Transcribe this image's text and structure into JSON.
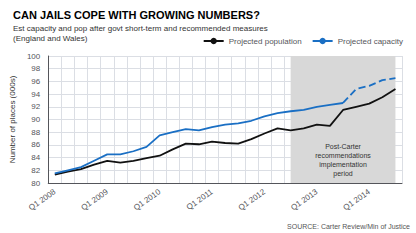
{
  "chart_data": {
    "type": "line",
    "title": "CAN JAILS COPE WITH GROWING NUMBERS?",
    "subtitle": [
      "Est capacity and pop after govt short-term and recommended measures",
      "(England and Wales)"
    ],
    "ylabel": "Number of places (000s)",
    "source": "SOURCE: Carter Review/Min of Justice",
    "annotation": {
      "text": "Post-Carter\nrecommendations\nimplementation\nperiod",
      "shaded_from_index": 18,
      "color": "#d8d8d8"
    },
    "categories": [
      "Q1 2008",
      null,
      null,
      null,
      "Q1 2009",
      null,
      null,
      null,
      "Q1 2010",
      null,
      null,
      null,
      "Q1 2011",
      null,
      null,
      null,
      "Q1 2012",
      null,
      null,
      null,
      "Q1 2013",
      null,
      null,
      null,
      "Q1 2014",
      null,
      null
    ],
    "series": [
      {
        "name": "Projected population",
        "color": "#111111",
        "line_style": "solid",
        "values": [
          81.3,
          81.8,
          82.2,
          82.9,
          83.5,
          83.2,
          83.5,
          83.9,
          84.3,
          85.3,
          86.2,
          86.1,
          86.5,
          86.3,
          86.2,
          86.9,
          87.8,
          88.6,
          88.3,
          88.6,
          89.2,
          89.0,
          91.5,
          92.0,
          92.5,
          93.5,
          94.8
        ]
      },
      {
        "name": "Projected capacity",
        "color": "#1a6fc4",
        "line_style": "solid",
        "values": [
          81.5,
          82.0,
          82.5,
          83.5,
          84.5,
          84.5,
          85.0,
          85.7,
          87.5,
          88.0,
          88.5,
          88.3,
          88.8,
          89.2,
          89.4,
          89.8,
          90.5,
          91.0,
          91.3,
          91.5,
          92.0,
          92.3,
          92.6,
          null,
          null,
          null,
          null
        ]
      },
      {
        "name": "Projected capacity",
        "color": "#1a6fc4",
        "line_style": "dashed",
        "values": [
          null,
          null,
          null,
          null,
          null,
          null,
          null,
          null,
          null,
          null,
          null,
          null,
          null,
          null,
          null,
          null,
          null,
          null,
          null,
          null,
          null,
          null,
          92.6,
          94.8,
          95.3,
          96.2,
          96.5
        ]
      }
    ],
    "ylim": [
      80,
      100
    ],
    "yticks": [
      80,
      82,
      84,
      86,
      88,
      90,
      92,
      94,
      96,
      98,
      100
    ],
    "grid": true,
    "legend": "upper right"
  }
}
